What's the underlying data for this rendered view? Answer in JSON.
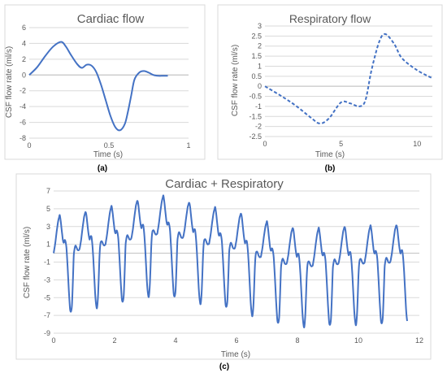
{
  "chart_data": [
    {
      "id": "a",
      "type": "line",
      "title": "Cardiac flow",
      "xlabel": "Time (s)",
      "ylabel": "CSF flow rate (ml/s)",
      "caption": "(a)",
      "xlim": [
        0,
        1
      ],
      "ylim": [
        -8,
        6
      ],
      "xticks": [
        0,
        0.5,
        1
      ],
      "yticks": [
        -8,
        -6,
        -4,
        -2,
        0,
        2,
        4,
        6
      ],
      "grid": "horizontal",
      "line_style": "solid",
      "color": "#4472C4",
      "series": [
        {
          "x": [
            0,
            0.05,
            0.1,
            0.15,
            0.2,
            0.23,
            0.26,
            0.3,
            0.33,
            0.36,
            0.39,
            0.42,
            0.45,
            0.48,
            0.51,
            0.54,
            0.57,
            0.6,
            0.62,
            0.64,
            0.66,
            0.69,
            0.72,
            0.75,
            0.78,
            0.81,
            0.84,
            0.87
          ],
          "y": [
            0,
            1,
            2.4,
            3.6,
            4.2,
            3.6,
            2.6,
            1.4,
            0.9,
            1.3,
            1.2,
            0.4,
            -1.2,
            -3.2,
            -5.2,
            -6.6,
            -7.0,
            -6.2,
            -4.6,
            -2.6,
            -0.6,
            0.3,
            0.5,
            0.3,
            0.0,
            -0.1,
            -0.1,
            -0.1
          ]
        }
      ]
    },
    {
      "id": "b",
      "type": "line",
      "title": "Respiratory flow",
      "xlabel": "Time (s)",
      "ylabel": "CSF flow rate (ml/s)",
      "caption": "(b)",
      "xlim": [
        0,
        11
      ],
      "ylim": [
        -2.5,
        3
      ],
      "xticks": [
        0,
        5,
        10
      ],
      "yticks": [
        -2.5,
        -2,
        -1.5,
        -1,
        -0.5,
        0,
        0.5,
        1,
        1.5,
        2,
        2.5,
        3
      ],
      "grid": "horizontal",
      "line_style": "dashed",
      "color": "#4472C4",
      "series": [
        {
          "x": [
            0,
            1,
            2,
            3,
            3.6,
            4.2,
            5,
            5.6,
            6.2,
            6.6,
            7,
            7.5,
            7.9,
            8.5,
            9,
            10,
            11
          ],
          "y": [
            0,
            -0.45,
            -0.95,
            -1.55,
            -1.85,
            -1.6,
            -0.8,
            -0.85,
            -1.0,
            -0.7,
            0.8,
            2.2,
            2.6,
            2.1,
            1.4,
            0.8,
            0.4
          ]
        }
      ]
    },
    {
      "id": "c",
      "type": "line",
      "title": "Cardiac + Respiratory",
      "xlabel": "Time (s)",
      "ylabel": "CSF flow rate (ml/s)",
      "caption": "(c)",
      "xlim": [
        0,
        12
      ],
      "ylim": [
        -9,
        7
      ],
      "xticks": [
        0,
        2,
        4,
        6,
        8,
        10,
        12
      ],
      "yticks": [
        -9,
        -7,
        -5,
        -3,
        -1,
        1,
        3,
        5,
        7
      ],
      "grid": "horizontal",
      "line_style": "solid",
      "color": "#4472C4",
      "cycle_period": 0.85,
      "cycle_shape": {
        "x": [
          0,
          0.05,
          0.1,
          0.15,
          0.2,
          0.23,
          0.26,
          0.3,
          0.33,
          0.36,
          0.39,
          0.42,
          0.45,
          0.48,
          0.51,
          0.54,
          0.57,
          0.6,
          0.62,
          0.64,
          0.66,
          0.69,
          0.72,
          0.75,
          0.78,
          0.81,
          0.85
        ],
        "y": [
          0,
          1,
          2.4,
          3.6,
          4.2,
          3.6,
          2.6,
          1.4,
          0.9,
          1.3,
          1.2,
          0.4,
          -1.2,
          -3.2,
          -5.2,
          -6.6,
          -7.0,
          -6.2,
          -4.6,
          -2.6,
          -0.6,
          0.3,
          0.5,
          0.3,
          0.0,
          -0.1,
          0.0
        ]
      },
      "respiratory_component": {
        "x": [
          0,
          1,
          2,
          3,
          3.6,
          4.2,
          5,
          5.6,
          6.2,
          6.6,
          7,
          7.5,
          7.9,
          8.5,
          9,
          10,
          11,
          11.6
        ],
        "y": [
          0,
          0.5,
          1.2,
          2.0,
          2.3,
          1.8,
          1.1,
          0.9,
          0.3,
          -0.2,
          -0.6,
          -1.1,
          -1.3,
          -1.4,
          -1.2,
          -1.1,
          -1.0,
          -0.9
        ]
      },
      "x_end": 11.6
    }
  ]
}
